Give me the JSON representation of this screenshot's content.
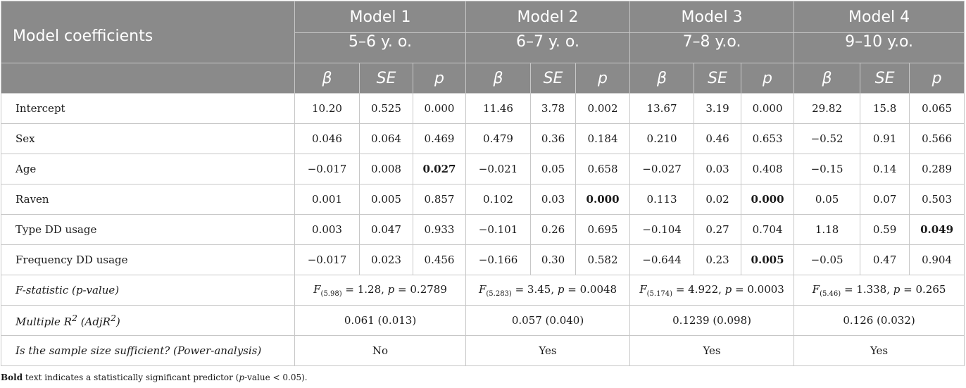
{
  "header": {
    "corner": "Model coefficients",
    "models": [
      {
        "name": "Model 1",
        "age": "5–6 y. o."
      },
      {
        "name": "Model 2",
        "age": "6–7 y. o."
      },
      {
        "name": "Model 3",
        "age": "7–8 y.o."
      },
      {
        "name": "Model 4",
        "age": "9–10 y.o."
      }
    ],
    "columns": [
      "β",
      "SE",
      "p"
    ]
  },
  "rows": [
    {
      "label": "Intercept",
      "cells": [
        {
          "v": "10.20"
        },
        {
          "v": "0.525"
        },
        {
          "v": "0.000"
        },
        {
          "v": "11.46"
        },
        {
          "v": "3.78"
        },
        {
          "v": "0.002"
        },
        {
          "v": "13.67"
        },
        {
          "v": "3.19"
        },
        {
          "v": "0.000"
        },
        {
          "v": "29.82"
        },
        {
          "v": "15.8"
        },
        {
          "v": "0.065"
        }
      ]
    },
    {
      "label": "Sex",
      "cells": [
        {
          "v": "0.046"
        },
        {
          "v": "0.064"
        },
        {
          "v": "0.469"
        },
        {
          "v": "0.479"
        },
        {
          "v": "0.36"
        },
        {
          "v": "0.184"
        },
        {
          "v": "0.210"
        },
        {
          "v": "0.46"
        },
        {
          "v": "0.653"
        },
        {
          "v": "−0.52"
        },
        {
          "v": "0.91"
        },
        {
          "v": "0.566"
        }
      ]
    },
    {
      "label": "Age",
      "cells": [
        {
          "v": "−0.017"
        },
        {
          "v": "0.008"
        },
        {
          "v": "0.027",
          "bold": true
        },
        {
          "v": "−0.021"
        },
        {
          "v": "0.05"
        },
        {
          "v": "0.658"
        },
        {
          "v": "−0.027"
        },
        {
          "v": "0.03"
        },
        {
          "v": "0.408"
        },
        {
          "v": "−0.15"
        },
        {
          "v": "0.14"
        },
        {
          "v": "0.289"
        }
      ]
    },
    {
      "label": "Raven",
      "cells": [
        {
          "v": "0.001"
        },
        {
          "v": "0.005"
        },
        {
          "v": "0.857"
        },
        {
          "v": "0.102"
        },
        {
          "v": "0.03"
        },
        {
          "v": "0.000",
          "bold": true
        },
        {
          "v": "0.113"
        },
        {
          "v": "0.02"
        },
        {
          "v": "0.000",
          "bold": true
        },
        {
          "v": "0.05"
        },
        {
          "v": "0.07"
        },
        {
          "v": "0.503"
        }
      ]
    },
    {
      "label": "Type DD usage",
      "cells": [
        {
          "v": "0.003"
        },
        {
          "v": "0.047"
        },
        {
          "v": "0.933"
        },
        {
          "v": "−0.101"
        },
        {
          "v": "0.26"
        },
        {
          "v": "0.695"
        },
        {
          "v": "−0.104"
        },
        {
          "v": "0.27"
        },
        {
          "v": "0.704"
        },
        {
          "v": "1.18"
        },
        {
          "v": "0.59"
        },
        {
          "v": "0.049",
          "bold": true
        }
      ]
    },
    {
      "label": "Frequency DD usage",
      "cells": [
        {
          "v": "−0.017"
        },
        {
          "v": "0.023"
        },
        {
          "v": "0.456"
        },
        {
          "v": "−0.166"
        },
        {
          "v": "0.30"
        },
        {
          "v": "0.582"
        },
        {
          "v": "−0.644"
        },
        {
          "v": "0.23"
        },
        {
          "v": "0.005",
          "bold": true
        },
        {
          "v": "−0.05"
        },
        {
          "v": "0.47"
        },
        {
          "v": "0.904"
        }
      ]
    }
  ],
  "fstat": {
    "label": "F-statistic (p-value)",
    "models": [
      {
        "f": "F",
        "df": "(5.98)",
        "value": " = 1.28, ",
        "p": "p",
        "pval": " = 0.2789"
      },
      {
        "f": "F",
        "df": "(5.283)",
        "value": " = 3.45, ",
        "p": "p",
        "pval": " = 0.0048"
      },
      {
        "f": "F",
        "df": "(5.174)",
        "value": " = 4.922, ",
        "p": "p",
        "pval": " = 0.0003"
      },
      {
        "f": "F",
        "df": "(5.46)",
        "value": " = 1.338, ",
        "p": "p",
        "pval": " = 0.265"
      }
    ]
  },
  "r2": {
    "label_pre": "Multiple R",
    "label_sup": "2",
    "label_mid": " (AdjR",
    "label_sup2": "2",
    "label_post": ")",
    "values": [
      "0.061 (0.013)",
      "0.057 (0.040)",
      "0.1239 (0.098)",
      "0.126 (0.032)"
    ]
  },
  "power": {
    "label": "Is the sample size sufficient? (Power-analysis)",
    "values": [
      "No",
      "Yes",
      "Yes",
      "Yes"
    ]
  },
  "footnote": {
    "bold": "Bold",
    "t1": " text indicates a statistically significant predictor (",
    "p": "p",
    "t2": "-value < 0.05)."
  }
}
